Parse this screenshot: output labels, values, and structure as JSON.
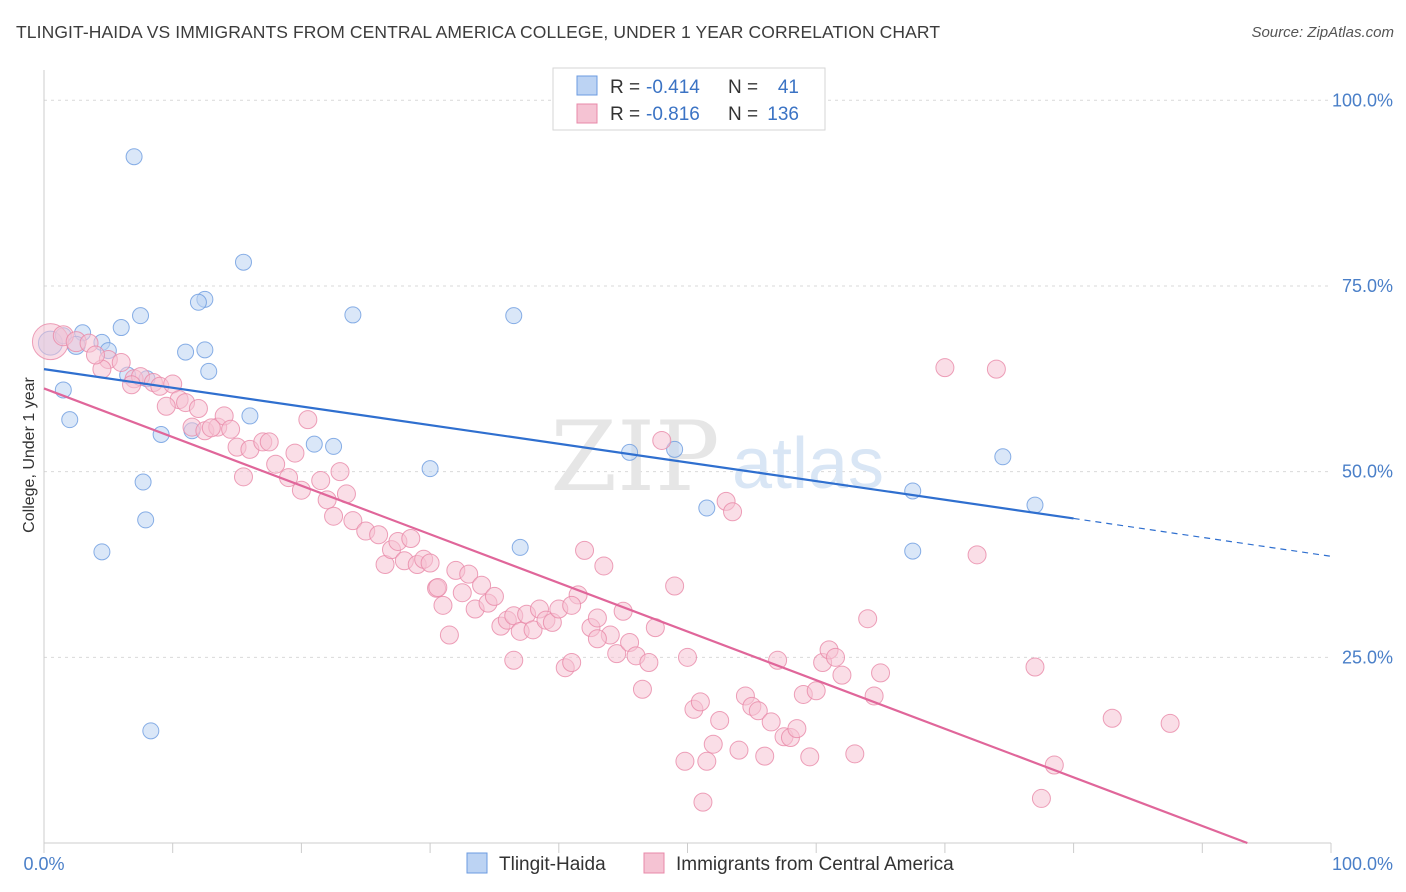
{
  "header": {
    "title": "TLINGIT-HAIDA VS IMMIGRANTS FROM CENTRAL AMERICA COLLEGE, UNDER 1 YEAR CORRELATION CHART",
    "source": "Source: ZipAtlas.com"
  },
  "watermark": {
    "zip": "ZIP",
    "atlas": "atlas"
  },
  "chart_data": {
    "type": "scatter",
    "ylabel": "College, Under 1 year",
    "xlim": [
      0,
      100
    ],
    "ylim": [
      0,
      103
    ],
    "x_tick_labels": [
      "0.0%",
      "100.0%"
    ],
    "y_ticks": [
      {
        "value": 25,
        "label": "25.0%"
      },
      {
        "value": 50,
        "label": "50.0%"
      },
      {
        "value": 75,
        "label": "75.0%"
      },
      {
        "value": 100,
        "label": "100.0%"
      }
    ],
    "grid": true,
    "legend_position": "top-center",
    "stats": [
      {
        "r_label": "R =",
        "r_value": "-0.414",
        "n_label": "N =",
        "n_value": "41"
      },
      {
        "r_label": "R =",
        "r_value": "-0.816",
        "n_label": "N =",
        "n_value": "136"
      }
    ],
    "series": [
      {
        "name": "Tlingit-Haida",
        "color": "#6b9be0",
        "fill": "#bcd3f3",
        "trend": {
          "x0": 0,
          "y0": 63.8,
          "x1": 80,
          "y1": 43.7,
          "dash_to_x": 100,
          "dash_to_y": 38.6
        },
        "points": [
          [
            0.5,
            67.3,
            12
          ],
          [
            1.5,
            68.3,
            8
          ],
          [
            3,
            68.7,
            8
          ],
          [
            2.5,
            67,
            9
          ],
          [
            4.5,
            67.4,
            8
          ],
          [
            5,
            66.3,
            8
          ],
          [
            1.5,
            61,
            8
          ],
          [
            6,
            69.4,
            8
          ],
          [
            8,
            62.5,
            8
          ],
          [
            6.5,
            63,
            8
          ],
          [
            2,
            57,
            8
          ],
          [
            7,
            92.4,
            8
          ],
          [
            12.5,
            73.2,
            8
          ],
          [
            12,
            72.8,
            8
          ],
          [
            7.5,
            71,
            8
          ],
          [
            11.5,
            55.5,
            8
          ],
          [
            15.5,
            78.2,
            8
          ],
          [
            11,
            66.1,
            8
          ],
          [
            12.5,
            66.4,
            8
          ],
          [
            12.8,
            63.5,
            8
          ],
          [
            9.1,
            55,
            8
          ],
          [
            7.7,
            48.6,
            8
          ],
          [
            7.9,
            43.5,
            8
          ],
          [
            4.5,
            39.2,
            8
          ],
          [
            16,
            57.5,
            8
          ],
          [
            21,
            53.7,
            8
          ],
          [
            22.5,
            53.4,
            8
          ],
          [
            24,
            71.1,
            8
          ],
          [
            36.5,
            71,
            8
          ],
          [
            30,
            50.4,
            8
          ],
          [
            37,
            39.8,
            8
          ],
          [
            45.5,
            52.6,
            8
          ],
          [
            49,
            53,
            8
          ],
          [
            51.5,
            45.1,
            8
          ],
          [
            67.5,
            39.3,
            8
          ],
          [
            67.5,
            47.4,
            8
          ],
          [
            74.5,
            52,
            8
          ],
          [
            77,
            45.5,
            8
          ],
          [
            8.3,
            15.1,
            8
          ]
        ]
      },
      {
        "name": "Immigrants from Central America",
        "color": "#e888a8",
        "fill": "#f5c3d3",
        "trend": {
          "x0": 0,
          "y0": 61.2,
          "x1": 93.5,
          "y1": 0
        },
        "points": [
          [
            0.5,
            67.5,
            18
          ],
          [
            1.5,
            68.3,
            10
          ],
          [
            2.5,
            67.5,
            10
          ],
          [
            3.5,
            67.3,
            9
          ],
          [
            5,
            65.1,
            9
          ],
          [
            6,
            64.7,
            9
          ],
          [
            4.5,
            63.8,
            9
          ],
          [
            4,
            65.7,
            9
          ],
          [
            7,
            62.5,
            9
          ],
          [
            7.5,
            62.8,
            9
          ],
          [
            8.5,
            62,
            9
          ],
          [
            9,
            61.5,
            9
          ],
          [
            10,
            61.8,
            9
          ],
          [
            10.5,
            59.7,
            9
          ],
          [
            11,
            59.3,
            9
          ],
          [
            9.5,
            58.8,
            9
          ],
          [
            11.5,
            56,
            9
          ],
          [
            12.5,
            55.5,
            9
          ],
          [
            13.5,
            56,
            9
          ],
          [
            14,
            57.5,
            9
          ],
          [
            14.5,
            55.7,
            9
          ],
          [
            13,
            55.9,
            9
          ],
          [
            15,
            53.3,
            9
          ],
          [
            16,
            53,
            9
          ],
          [
            17,
            54,
            9
          ],
          [
            17.5,
            54,
            9
          ],
          [
            15.5,
            49.3,
            9
          ],
          [
            18,
            51,
            9
          ],
          [
            19,
            49.2,
            9
          ],
          [
            19.5,
            52.5,
            9
          ],
          [
            20,
            47.5,
            9
          ],
          [
            20.5,
            57,
            9
          ],
          [
            21.5,
            48.8,
            9
          ],
          [
            22,
            46.2,
            9
          ],
          [
            22.5,
            44,
            9
          ],
          [
            23,
            50,
            9
          ],
          [
            23.5,
            47,
            9
          ],
          [
            24,
            43.4,
            9
          ],
          [
            25,
            42,
            9
          ],
          [
            26,
            41.5,
            9
          ],
          [
            26.5,
            37.5,
            9
          ],
          [
            27,
            39.5,
            9
          ],
          [
            27.5,
            40.6,
            9
          ],
          [
            28,
            38,
            9
          ],
          [
            28.5,
            41,
            9
          ],
          [
            29,
            37.5,
            9
          ],
          [
            29.5,
            38.2,
            9
          ],
          [
            30,
            37.7,
            9
          ],
          [
            30.5,
            34.3,
            9
          ],
          [
            31,
            32,
            9
          ],
          [
            31.5,
            28,
            9
          ],
          [
            32,
            36.7,
            9
          ],
          [
            32.5,
            33.7,
            9
          ],
          [
            33,
            36.2,
            9
          ],
          [
            33.5,
            31.5,
            9
          ],
          [
            34,
            34.7,
            9
          ],
          [
            34.5,
            32.3,
            9
          ],
          [
            35,
            33.2,
            9
          ],
          [
            35.5,
            29.2,
            9
          ],
          [
            36,
            30,
            9
          ],
          [
            36.5,
            30.6,
            9
          ],
          [
            37,
            28.5,
            9
          ],
          [
            37.5,
            30.8,
            9
          ],
          [
            38,
            28.7,
            9
          ],
          [
            38.5,
            31.5,
            9
          ],
          [
            39,
            30,
            9
          ],
          [
            39.5,
            29.7,
            9
          ],
          [
            40,
            31.5,
            9
          ],
          [
            40.5,
            23.6,
            9
          ],
          [
            41,
            24.3,
            9
          ],
          [
            42,
            39.4,
            9
          ],
          [
            41.5,
            33.4,
            9
          ],
          [
            42.5,
            29,
            9
          ],
          [
            43,
            30.3,
            9
          ],
          [
            43.5,
            37.3,
            9
          ],
          [
            44,
            28,
            9
          ],
          [
            44.5,
            25.5,
            9
          ],
          [
            45,
            31.2,
            9
          ],
          [
            45.5,
            27,
            9
          ],
          [
            46,
            25.2,
            9
          ],
          [
            46.5,
            20.7,
            9
          ],
          [
            47,
            24.3,
            9
          ],
          [
            47.5,
            29,
            9
          ],
          [
            48,
            54.2,
            9
          ],
          [
            49,
            34.6,
            9
          ],
          [
            50,
            25,
            9
          ],
          [
            50.5,
            18,
            9
          ],
          [
            51,
            19,
            9
          ],
          [
            51.5,
            11,
            9
          ],
          [
            52,
            13.3,
            9
          ],
          [
            52.5,
            16.5,
            9
          ],
          [
            53,
            46,
            9
          ],
          [
            53.5,
            44.6,
            9
          ],
          [
            54,
            12.5,
            9
          ],
          [
            54.5,
            19.8,
            9
          ],
          [
            55,
            18.4,
            9
          ],
          [
            55.5,
            17.8,
            9
          ],
          [
            56,
            11.7,
            9
          ],
          [
            56.5,
            16.3,
            9
          ],
          [
            57,
            24.6,
            9
          ],
          [
            57.5,
            14.3,
            9
          ],
          [
            58,
            14.2,
            9
          ],
          [
            58.5,
            15.4,
            9
          ],
          [
            59,
            20,
            9
          ],
          [
            59.5,
            11.6,
            9
          ],
          [
            60,
            20.5,
            9
          ],
          [
            60.5,
            24.3,
            9
          ],
          [
            61,
            26,
            9
          ],
          [
            61.5,
            25,
            9
          ],
          [
            62,
            22.6,
            9
          ],
          [
            63,
            12,
            9
          ],
          [
            64,
            30.2,
            9
          ],
          [
            64.5,
            19.8,
            9
          ],
          [
            65,
            22.9,
            9
          ],
          [
            70,
            64,
            9
          ],
          [
            74,
            63.8,
            9
          ],
          [
            72.5,
            38.8,
            9
          ],
          [
            77,
            23.7,
            9
          ],
          [
            78.5,
            10.5,
            9
          ],
          [
            77.5,
            6,
            9
          ],
          [
            83,
            16.8,
            9
          ],
          [
            87.5,
            16.1,
            9
          ],
          [
            30.6,
            34.4,
            9
          ],
          [
            36.5,
            24.6,
            9
          ],
          [
            41,
            32,
            9
          ],
          [
            43,
            27.5,
            9
          ],
          [
            49.8,
            11,
            9
          ],
          [
            51.2,
            5.5,
            9
          ],
          [
            12,
            58.5,
            9
          ],
          [
            6.8,
            61.7,
            9
          ]
        ]
      }
    ]
  }
}
